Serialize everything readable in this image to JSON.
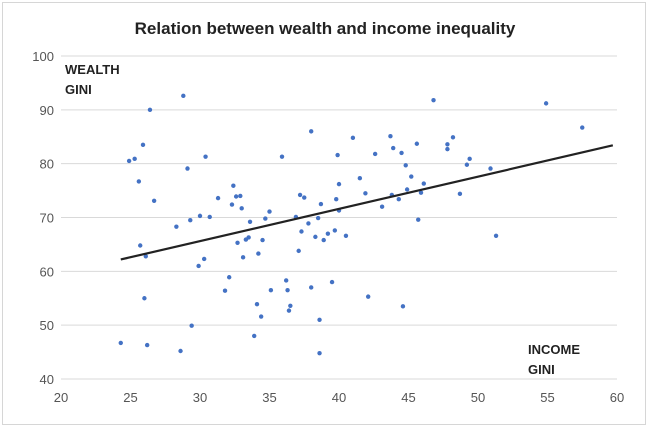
{
  "chart_data": {
    "type": "scatter",
    "title": "Relation between wealth and income inequality",
    "xlabel_lines": [
      "INCOME",
      "GINI"
    ],
    "ylabel_lines": [
      "WEALTH",
      "GINI"
    ],
    "xlim": [
      20,
      60
    ],
    "ylim": [
      40,
      100
    ],
    "xticks": [
      20,
      25,
      30,
      35,
      40,
      45,
      50,
      55,
      60
    ],
    "yticks": [
      40,
      50,
      60,
      70,
      80,
      90,
      100
    ],
    "grid": "horizontal",
    "point_color": "#4472c4",
    "trend_color": "#222222",
    "trendline": {
      "x": [
        24.3,
        59.7
      ],
      "y": [
        62.2,
        83.4
      ]
    },
    "points": [
      [
        24.3,
        46.7
      ],
      [
        24.9,
        80.5
      ],
      [
        25.3,
        80.9
      ],
      [
        25.6,
        76.7
      ],
      [
        25.7,
        64.8
      ],
      [
        25.9,
        83.5
      ],
      [
        26.0,
        55.0
      ],
      [
        26.1,
        62.8
      ],
      [
        26.2,
        46.3
      ],
      [
        26.4,
        90.0
      ],
      [
        26.7,
        73.1
      ],
      [
        28.3,
        68.3
      ],
      [
        28.6,
        45.2
      ],
      [
        28.8,
        92.6
      ],
      [
        29.1,
        79.1
      ],
      [
        29.3,
        69.5
      ],
      [
        29.4,
        49.9
      ],
      [
        29.9,
        61.0
      ],
      [
        30.0,
        70.3
      ],
      [
        30.3,
        62.3
      ],
      [
        30.4,
        81.3
      ],
      [
        30.7,
        70.1
      ],
      [
        31.3,
        73.6
      ],
      [
        31.8,
        56.4
      ],
      [
        32.1,
        58.9
      ],
      [
        32.3,
        72.4
      ],
      [
        32.4,
        75.9
      ],
      [
        32.6,
        73.9
      ],
      [
        32.7,
        65.3
      ],
      [
        32.9,
        74.0
      ],
      [
        33.0,
        71.7
      ],
      [
        33.1,
        62.6
      ],
      [
        33.3,
        65.9
      ],
      [
        33.5,
        66.3
      ],
      [
        33.6,
        69.2
      ],
      [
        33.9,
        48.0
      ],
      [
        34.1,
        53.9
      ],
      [
        34.2,
        63.3
      ],
      [
        34.4,
        51.6
      ],
      [
        34.5,
        65.8
      ],
      [
        34.7,
        69.8
      ],
      [
        35.0,
        71.1
      ],
      [
        35.1,
        56.5
      ],
      [
        35.9,
        81.3
      ],
      [
        36.2,
        58.3
      ],
      [
        36.3,
        56.5
      ],
      [
        36.4,
        52.7
      ],
      [
        36.5,
        53.6
      ],
      [
        36.9,
        70.1
      ],
      [
        37.1,
        63.8
      ],
      [
        37.2,
        74.2
      ],
      [
        37.3,
        67.4
      ],
      [
        37.5,
        73.7
      ],
      [
        37.8,
        68.9
      ],
      [
        38.0,
        86.0
      ],
      [
        38.0,
        57.0
      ],
      [
        38.3,
        66.4
      ],
      [
        38.5,
        69.9
      ],
      [
        38.6,
        51.0
      ],
      [
        38.6,
        44.8
      ],
      [
        38.7,
        72.5
      ],
      [
        38.9,
        65.8
      ],
      [
        39.2,
        67.0
      ],
      [
        39.5,
        58.0
      ],
      [
        39.7,
        67.6
      ],
      [
        39.8,
        73.4
      ],
      [
        39.9,
        81.6
      ],
      [
        40.0,
        71.3
      ],
      [
        40.0,
        76.2
      ],
      [
        40.5,
        66.6
      ],
      [
        41.0,
        84.8
      ],
      [
        41.5,
        77.3
      ],
      [
        41.9,
        74.5
      ],
      [
        42.1,
        55.3
      ],
      [
        42.6,
        81.8
      ],
      [
        43.1,
        72.0
      ],
      [
        43.7,
        85.1
      ],
      [
        43.8,
        74.2
      ],
      [
        43.9,
        82.9
      ],
      [
        44.3,
        73.4
      ],
      [
        44.5,
        82.0
      ],
      [
        44.6,
        53.5
      ],
      [
        44.8,
        79.7
      ],
      [
        44.9,
        75.2
      ],
      [
        45.2,
        77.6
      ],
      [
        45.6,
        83.7
      ],
      [
        45.7,
        69.6
      ],
      [
        45.9,
        74.6
      ],
      [
        46.1,
        76.3
      ],
      [
        46.8,
        91.8
      ],
      [
        47.8,
        83.6
      ],
      [
        47.8,
        82.7
      ],
      [
        48.2,
        84.9
      ],
      [
        48.7,
        74.4
      ],
      [
        49.2,
        79.8
      ],
      [
        49.4,
        80.9
      ],
      [
        50.9,
        79.1
      ],
      [
        51.3,
        66.6
      ],
      [
        54.9,
        91.2
      ],
      [
        57.5,
        86.7
      ]
    ]
  }
}
